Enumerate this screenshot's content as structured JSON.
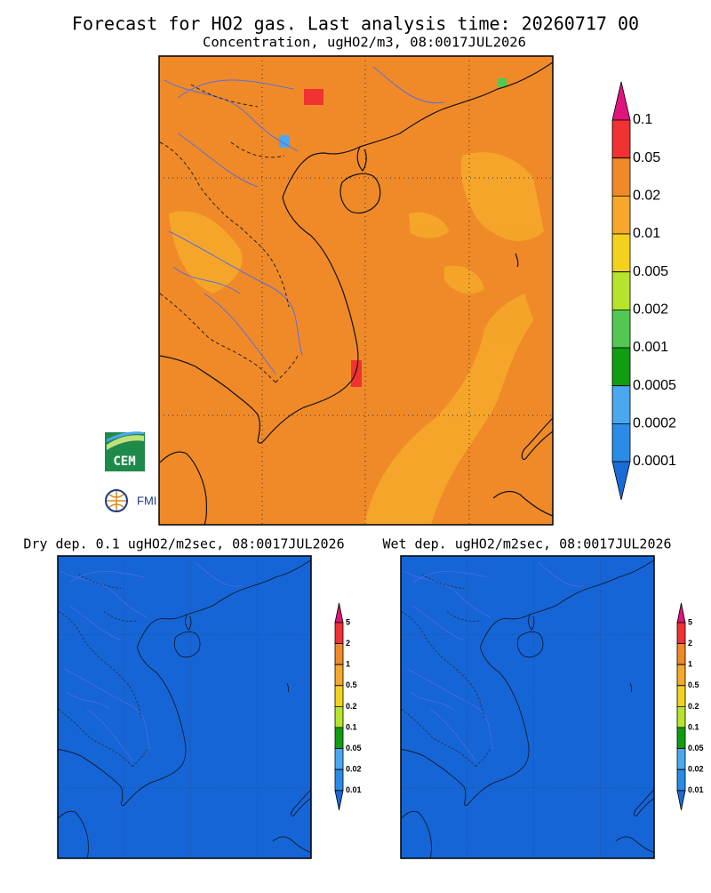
{
  "title": "Forecast for HO2 gas. Last analysis time: 20260717 00",
  "subtitle": "Concentration, ugHO2/m3, 08:0017JUL2026",
  "main_map": {
    "colorbar": {
      "labels": [
        "0.1",
        "0.05",
        "0.02",
        "0.01",
        "0.005",
        "0.002",
        "0.001",
        "0.0005",
        "0.0002",
        "0.0001"
      ],
      "colors": [
        "#e0147c",
        "#f03232",
        "#f08a28",
        "#f5a82a",
        "#f2d21c",
        "#b6e42c",
        "#52c852",
        "#0f9e10",
        "#4aa8f0",
        "#2a8ce8",
        "#1a6ad8"
      ]
    }
  },
  "panels": [
    {
      "title": "Dry dep. 0.1 ugHO2/m2sec, 08:0017JUL2026",
      "colorbar": {
        "labels": [
          "5",
          "2",
          "1",
          "0.5",
          "0.2",
          "0.1",
          "0.05",
          "0.02",
          "0.01"
        ],
        "colors": [
          "#e0147c",
          "#f03232",
          "#f08a28",
          "#f5a82a",
          "#f2d21c",
          "#b6e42c",
          "#0f9e10",
          "#4aa8f0",
          "#2a8ce8",
          "#1a6ad8"
        ]
      }
    },
    {
      "title": "Wet dep. ugHO2/m2sec, 08:0017JUL2026",
      "colorbar": {
        "labels": [
          "5",
          "2",
          "1",
          "0.5",
          "0.2",
          "0.1",
          "0.05",
          "0.02",
          "0.01"
        ],
        "colors": [
          "#e0147c",
          "#f03232",
          "#f08a28",
          "#f5a82a",
          "#f2d21c",
          "#b6e42c",
          "#0f9e10",
          "#4aa8f0",
          "#2a8ce8",
          "#1a6ad8"
        ]
      }
    }
  ],
  "logos": {
    "cem": "CEM",
    "fmi": "FMI"
  }
}
